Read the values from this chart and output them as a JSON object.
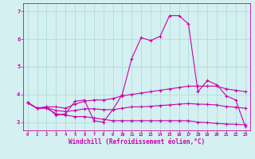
{
  "xlabel": "Windchill (Refroidissement éolien,°C)",
  "background_color": "#d4f0f0",
  "line_color": "#cc00aa",
  "xlim": [
    -0.5,
    23.5
  ],
  "ylim": [
    2.7,
    7.3
  ],
  "xticks": [
    0,
    1,
    2,
    3,
    4,
    5,
    6,
    7,
    8,
    9,
    10,
    11,
    12,
    13,
    14,
    15,
    16,
    17,
    18,
    19,
    20,
    21,
    22,
    23
  ],
  "yticks": [
    3,
    4,
    5,
    6,
    7
  ],
  "grid_color": "#b0dede",
  "series": {
    "line1": [
      3.7,
      3.5,
      3.55,
      3.25,
      3.3,
      3.75,
      3.8,
      3.05,
      3.0,
      3.45,
      4.0,
      5.3,
      6.05,
      5.95,
      6.1,
      6.85,
      6.85,
      6.55,
      4.1,
      4.5,
      4.35,
      3.95,
      3.8,
      2.85
    ],
    "line2": [
      3.7,
      3.5,
      3.55,
      3.55,
      3.5,
      3.65,
      3.75,
      3.8,
      3.8,
      3.85,
      3.95,
      4.0,
      4.05,
      4.1,
      4.15,
      4.2,
      4.25,
      4.3,
      4.3,
      4.3,
      4.3,
      4.2,
      4.15,
      4.1
    ],
    "line3": [
      3.7,
      3.5,
      3.5,
      3.3,
      3.25,
      3.2,
      3.2,
      3.15,
      3.1,
      3.05,
      3.05,
      3.05,
      3.05,
      3.05,
      3.05,
      3.05,
      3.05,
      3.05,
      3.0,
      2.98,
      2.95,
      2.93,
      2.92,
      2.9
    ],
    "line4": [
      3.7,
      3.5,
      3.52,
      3.42,
      3.38,
      3.42,
      3.48,
      3.48,
      3.45,
      3.45,
      3.5,
      3.55,
      3.55,
      3.57,
      3.6,
      3.62,
      3.65,
      3.67,
      3.65,
      3.64,
      3.62,
      3.56,
      3.54,
      3.5
    ]
  }
}
